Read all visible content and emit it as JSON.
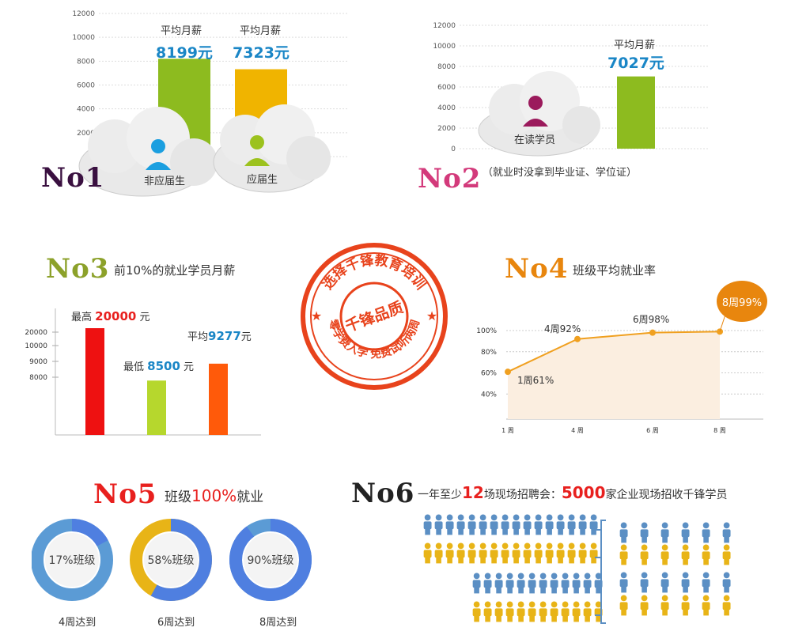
{
  "panels": {
    "no1": {
      "title": "No1",
      "title_color": "#3a1040",
      "salary_label": "平均月薪",
      "clouds": [
        "非应届生",
        "应届生"
      ]
    },
    "no2": {
      "title": "No2",
      "title_color": "#d33a7b",
      "salary_label": "平均月薪",
      "cloud": "在读学员",
      "note": "（就业时没拿到毕业证、学位证）"
    },
    "no3": {
      "title": "No3",
      "title_color": "#8ca12a",
      "subtitle": "前10%的就业学员月薪",
      "high_label": "最高",
      "high_value": "20000",
      "low_label": "最低",
      "low_value": "8500",
      "avg_label": "平均",
      "avg_value": "9277",
      "unit": "元"
    },
    "no4": {
      "title": "No4",
      "title_color": "#e8860e",
      "subtitle": "班级平均就业率",
      "bubble": "8周99%",
      "point_labels": [
        "1周61%",
        "4周92%",
        "6周98%"
      ]
    },
    "stamp": {
      "top": "选择千锋教育培训",
      "center": "千锋品质",
      "bottom": "零学费入学 免费试听两周"
    },
    "no5": {
      "title": "No5",
      "title_color": "#e8201e",
      "subtitle_pre": "班级",
      "subtitle_highlight": "100%",
      "subtitle_post": "就业",
      "rings": [
        {
          "label": "17%班级",
          "caption": "4周达到",
          "fraction": 0.17,
          "color": "#4f7fe0",
          "track": "#5b9bd5"
        },
        {
          "label": "58%班级",
          "caption": "6周达到",
          "fraction": 0.58,
          "color": "#4f7fe0",
          "track": "#e8b417"
        },
        {
          "label": "90%班级",
          "caption": "8周达到",
          "fraction": 0.9,
          "color": "#4f7fe0",
          "track": "#5b9bd5"
        }
      ]
    },
    "no6": {
      "title": "No6",
      "title_color": "#222222",
      "line_pre": "一年至少",
      "line_num1": "12",
      "line_mid": "场现场招聘会：",
      "line_num2": "5000",
      "line_post": "家企业现场招收千锋学员"
    }
  },
  "chart_data": [
    {
      "type": "bar",
      "categories": [
        "非应届生",
        "应届生"
      ],
      "values": [
        8199,
        7323
      ],
      "value_labels": [
        "8199元",
        "7323元"
      ],
      "ylim": [
        0,
        12000
      ],
      "yticks": [
        0,
        2000,
        4000,
        6000,
        8000,
        10000,
        12000
      ],
      "colors": [
        "#8dbb1f",
        "#f0b400"
      ]
    },
    {
      "type": "bar",
      "categories": [
        "在读学员"
      ],
      "values": [
        7027
      ],
      "value_labels": [
        "7027元"
      ],
      "ylim": [
        0,
        12000
      ],
      "yticks": [
        0,
        2000,
        4000,
        6000,
        8000,
        10000,
        12000
      ],
      "colors": [
        "#8dbb1f"
      ]
    },
    {
      "type": "bar",
      "categories": [
        "最高",
        "最低",
        "平均"
      ],
      "values": [
        20000,
        8500,
        9277
      ],
      "yticks": [
        8000,
        9000,
        10000,
        20000
      ],
      "colors": [
        "#ee1111",
        "#b6d72d",
        "#ff5a0a"
      ]
    },
    {
      "type": "line",
      "x": [
        "1 周",
        "4 周",
        "6 周",
        "8 周"
      ],
      "values": [
        61,
        92,
        98,
        99
      ],
      "yticks": [
        "40%",
        "60%",
        "80%",
        "100%"
      ],
      "ytick_values": [
        40,
        60,
        80,
        100
      ],
      "color": "#f0a020"
    }
  ]
}
